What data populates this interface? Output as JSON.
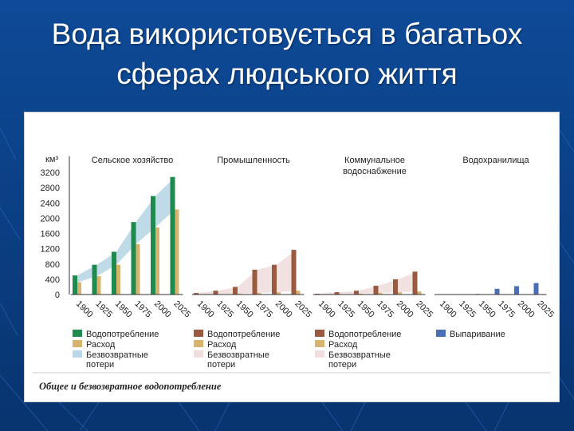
{
  "slide": {
    "title_line1": "Вода використовується в багатьох",
    "title_line2": "сферах людського життя"
  },
  "colors": {
    "background": "#0b3f86",
    "consumption_green": "#1e8a4e",
    "consumption_brown": "#9a5a40",
    "evaporation_blue": "#4a6fb5",
    "expense_yellow": "#d7b46e",
    "losses_blue": "#b9d7e6",
    "losses_pink": "#f0dede"
  },
  "chart_data": {
    "type": "bar",
    "unit_label": "км³",
    "yticks": [
      0,
      400,
      800,
      1200,
      1600,
      2000,
      2400,
      2800,
      3200
    ],
    "ylim": [
      0,
      3200
    ],
    "xticks": [
      "1900",
      "1925",
      "1950",
      "1975",
      "2000",
      "2025"
    ],
    "caption": "Общее и безвозвратное водопотребление",
    "panels": [
      {
        "title": "Сельское хозяйство",
        "series": [
          {
            "name": "Водопотребление",
            "values": [
              500,
              780,
              1120,
              1900,
              2580,
              3080
            ]
          },
          {
            "name": "Расход",
            "values": [
              320,
              480,
              780,
              1320,
              1760,
              2230
            ]
          }
        ]
      },
      {
        "title": "Промышленность",
        "series": [
          {
            "name": "Водопотребление",
            "values": [
              40,
              100,
              200,
              650,
              780,
              1170
            ]
          },
          {
            "name": "Расход",
            "values": [
              5,
              10,
              20,
              40,
              60,
              100
            ]
          }
        ]
      },
      {
        "title": "Коммунальное водоснабжение",
        "series": [
          {
            "name": "Водопотребление",
            "values": [
              20,
              60,
              100,
              230,
              400,
              600
            ]
          },
          {
            "name": "Расход",
            "values": [
              5,
              10,
              20,
              40,
              60,
              80
            ]
          }
        ]
      },
      {
        "title": "Водохранилища",
        "series": [
          {
            "name": "Выпаривание",
            "values": [
              0,
              5,
              15,
              150,
              220,
              300
            ]
          }
        ]
      }
    ],
    "legends": [
      [
        "Водопотребление",
        "Расход",
        "Безвозвратные потери"
      ],
      [
        "Водопотребление",
        "Расход",
        "Безвозвратные потери"
      ],
      [
        "Водопотребление",
        "Расход",
        "Безвозвратные потери"
      ],
      [
        "Выпаривание"
      ]
    ]
  }
}
